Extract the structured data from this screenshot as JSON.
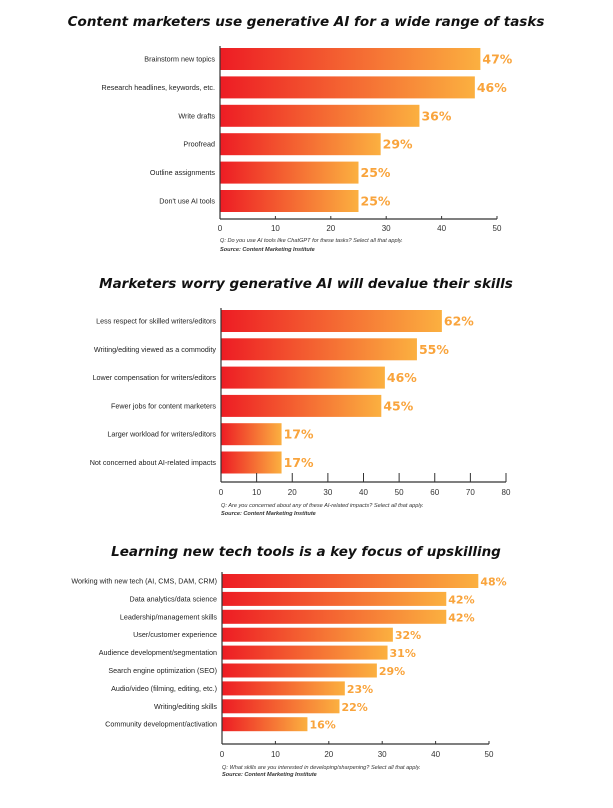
{
  "colors": {
    "bar_start": "#ed1c24",
    "bar_end": "#fbb040",
    "value_label": "#f9a43c",
    "axis": "#333333"
  },
  "chart_data": [
    {
      "type": "bar",
      "orientation": "horizontal",
      "title": "Content marketers use generative AI for a wide range of tasks",
      "categories": [
        "Brainstorm new topics",
        "Research headlines, keywords, etc.",
        "Write drafts",
        "Proofread",
        "Outline assignments",
        "Don't use AI tools"
      ],
      "values": [
        47,
        46,
        36,
        29,
        25,
        25
      ],
      "value_labels": [
        "47%",
        "46%",
        "36%",
        "29%",
        "25%",
        "25%"
      ],
      "xlim": [
        0,
        50
      ],
      "xticks": [
        0,
        10,
        20,
        30,
        40,
        50
      ],
      "grid": false,
      "note": "Q: Do you use AI tools like ChatGPT for these tasks? Select all that apply.",
      "source": "Source: Content Marketing Institute"
    },
    {
      "type": "bar",
      "orientation": "horizontal",
      "title": "Marketers worry generative AI will devalue their skills",
      "categories": [
        "Less respect for skilled writers/editors",
        "Writing/editing viewed as a commodity",
        "Lower compensation for writers/editors",
        "Fewer jobs for content marketers",
        "Larger workload for writers/editors",
        "Not concerned about AI-related impacts"
      ],
      "values": [
        62,
        55,
        46,
        45,
        17,
        17
      ],
      "value_labels": [
        "62%",
        "55%",
        "46%",
        "45%",
        "17%",
        "17%"
      ],
      "xlim": [
        0,
        80
      ],
      "xticks": [
        0,
        10,
        20,
        30,
        40,
        50,
        60,
        70,
        80
      ],
      "grid": false,
      "note": "Q: Are you concerned about any of these AI-related impacts? Select all that apply.",
      "source": "Source: Content Marketing Institute"
    },
    {
      "type": "bar",
      "orientation": "horizontal",
      "title": "Learning new tech tools is a key focus of upskilling",
      "categories": [
        "Working with new tech (AI, CMS, DAM, CRM)",
        "Data analytics/data science",
        "Leadership/management skills",
        "User/customer experience",
        "Audience development/segmentation",
        "Search engine optimization (SEO)",
        "Audio/video (filming, editing, etc.)",
        "Writing/editing skills",
        "Community development/activation"
      ],
      "values": [
        48,
        42,
        42,
        32,
        31,
        29,
        23,
        22,
        16
      ],
      "value_labels": [
        "48%",
        "42%",
        "42%",
        "32%",
        "31%",
        "29%",
        "23%",
        "22%",
        "16%"
      ],
      "xlim": [
        0,
        50
      ],
      "xticks": [
        0,
        10,
        20,
        30,
        40,
        50
      ],
      "grid": false,
      "note": "Q: What skills are you interested in developing/sharpening? Select all that apply.",
      "source": "Source: Content Marketing Institute"
    }
  ]
}
